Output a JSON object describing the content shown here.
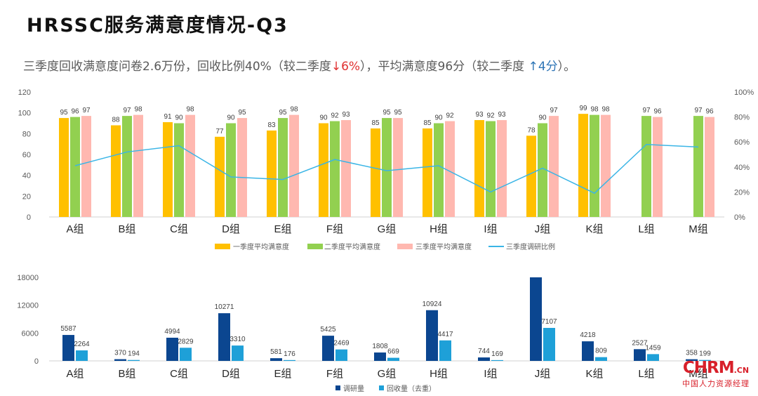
{
  "title": "HRSSC服务满意度情况-Q3",
  "summary": {
    "part1": "三季度回收满意度问卷2.6万份，回收比例40%（较二季度",
    "change1": "↓6%",
    "part2": "），平均满意度96分（较二季度",
    "change2": "↑4分",
    "part3": "）。"
  },
  "logo": {
    "main": "CHRM",
    "suffix": ".CN",
    "tagline": "中国人力资源经理"
  },
  "colors": {
    "q1": "#ffc000",
    "q2": "#92d050",
    "q3": "#ffb8b0",
    "ratio": "#3ab5e6",
    "survey": "#0b4690",
    "recovered": "#1ea0d8"
  },
  "chart_data": [
    {
      "type": "bar",
      "categories": [
        "A组",
        "B组",
        "C组",
        "D组",
        "E组",
        "F组",
        "G组",
        "H组",
        "I组",
        "J组",
        "K组",
        "L组",
        "M组"
      ],
      "series": [
        {
          "name": "一季度平均满意度",
          "values": [
            95,
            88,
            91,
            77,
            83,
            90,
            85,
            85,
            93,
            78,
            99,
            null,
            null
          ]
        },
        {
          "name": "二季度平均满意度",
          "values": [
            96,
            97,
            90,
            90,
            95,
            92,
            95,
            90,
            92,
            90,
            98,
            97,
            97
          ]
        },
        {
          "name": "三季度平均满意度",
          "values": [
            97,
            98,
            98,
            95,
            98,
            93,
            95,
            92,
            93,
            97,
            98,
            96,
            96
          ]
        },
        {
          "name": "三季度调研比例",
          "type": "line",
          "axis": "right",
          "values": [
            0.41,
            0.52,
            0.57,
            0.32,
            0.3,
            0.46,
            0.37,
            0.41,
            0.2,
            0.39,
            0.19,
            0.58,
            0.56
          ]
        }
      ],
      "ylim": [
        0,
        120
      ],
      "yticks": [
        "0",
        "20",
        "40",
        "60",
        "80",
        "100",
        "120"
      ],
      "y2lim": [
        0,
        1
      ],
      "y2ticks": [
        "0%",
        "20%",
        "40%",
        "60%",
        "80%",
        "100%"
      ],
      "legend": "bottom",
      "grid": false
    },
    {
      "type": "bar",
      "categories": [
        "A组",
        "B组",
        "C组",
        "D组",
        "E组",
        "F组",
        "G组",
        "H组",
        "I组",
        "J组",
        "K组",
        "L组",
        "M组"
      ],
      "series": [
        {
          "name": "调研量",
          "values": [
            5587,
            370,
            4994,
            10271,
            581,
            5425,
            1808,
            10924,
            744,
            18000,
            4218,
            2527,
            358
          ]
        },
        {
          "name": "回收量（去重）",
          "values": [
            2264,
            194,
            2829,
            3310,
            176,
            2469,
            669,
            4417,
            169,
            7107,
            809,
            1459,
            199
          ]
        }
      ],
      "data_labels": {
        "调研量": [
          "5587",
          "370",
          "4994",
          "10271",
          "581",
          "5425",
          "1808",
          "10924",
          "744",
          "",
          "4218",
          "2527",
          "358"
        ],
        "回收量（去重）": [
          "2264",
          "194",
          "2829",
          "3310",
          "176",
          "2469",
          "669",
          "4417",
          "169",
          "7107",
          "809",
          "1459",
          "199"
        ]
      },
      "ylim": [
        0,
        18000
      ],
      "yticks": [
        "0",
        "6000",
        "12000",
        "18000"
      ],
      "legend": "bottom",
      "grid": false
    }
  ]
}
